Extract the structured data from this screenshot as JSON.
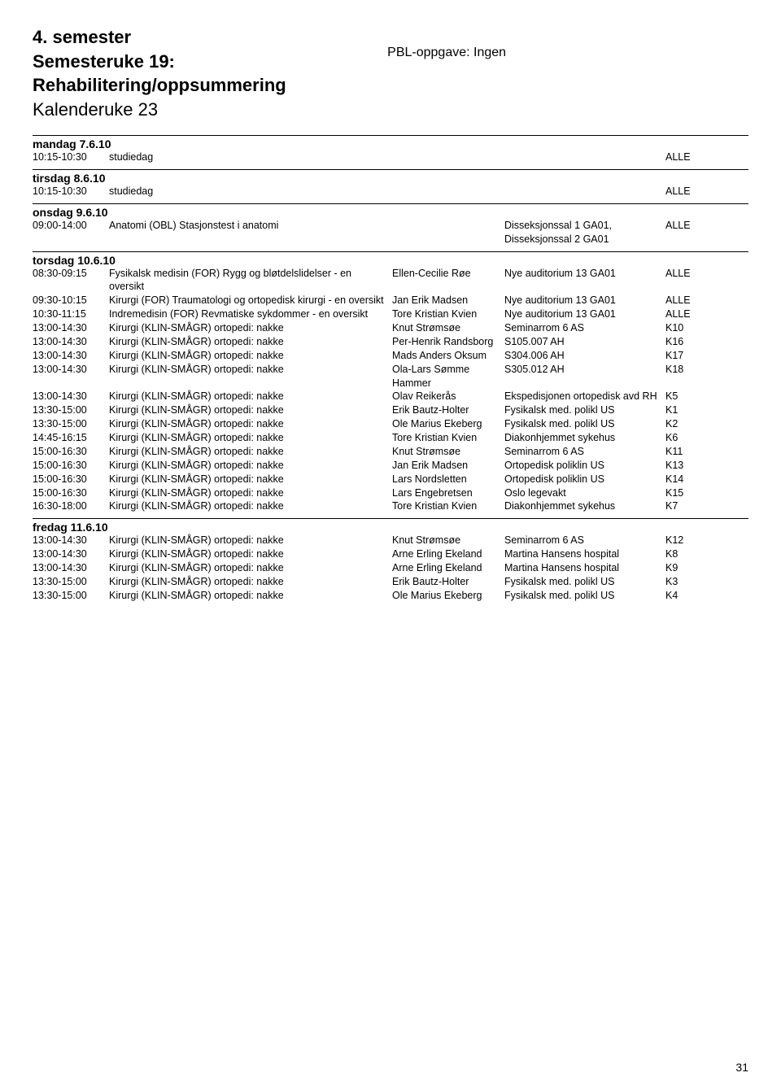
{
  "header": {
    "line1": "4. semester",
    "line2": "Semesteruke 19:",
    "line3": "Rehabilitering/oppsummering",
    "line4": "Kalenderuke 23",
    "pbl": "PBL-oppgave: Ingen"
  },
  "days": [
    {
      "title": "mandag 7.6.10",
      "rows": [
        {
          "time": "10:15-10:30",
          "label": "studiedag",
          "person": "",
          "loc": "",
          "code": "ALLE"
        }
      ]
    },
    {
      "title": "tirsdag 8.6.10",
      "rows": [
        {
          "time": "10:15-10:30",
          "label": "studiedag",
          "person": "",
          "loc": "",
          "code": "ALLE"
        }
      ]
    },
    {
      "title": "onsdag 9.6.10",
      "rows": [
        {
          "time": "09:00-14:00",
          "label": "Anatomi (OBL) Stasjonstest i anatomi",
          "person": "",
          "loc": "Disseksjonssal 1 GA01, Disseksjonssal 2 GA01",
          "code": "ALLE"
        }
      ]
    },
    {
      "title": "torsdag 10.6.10",
      "rows": [
        {
          "time": "08:30-09:15",
          "label": "Fysikalsk medisin (FOR) Rygg og bløtdelslidelser - en oversikt",
          "person": "Ellen-Cecilie Røe",
          "loc": "Nye auditorium 13 GA01",
          "code": "ALLE"
        },
        {
          "time": "09:30-10:15",
          "label": "Kirurgi (FOR) Traumatologi og ortopedisk kirurgi - en oversikt",
          "person": "Jan Erik Madsen",
          "loc": "Nye auditorium 13 GA01",
          "code": "ALLE"
        },
        {
          "time": "10:30-11:15",
          "label": "Indremedisin (FOR) Revmatiske sykdommer - en oversikt",
          "person": "Tore Kristian Kvien",
          "loc": "Nye auditorium 13 GA01",
          "code": "ALLE"
        },
        {
          "time": "13:00-14:30",
          "label": "Kirurgi (KLIN-SMÅGR) ortopedi: nakke",
          "person": "Knut Strømsøe",
          "loc": "Seminarrom 6 AS",
          "code": "K10"
        },
        {
          "time": "13:00-14:30",
          "label": "Kirurgi (KLIN-SMÅGR) ortopedi: nakke",
          "person": "Per-Henrik Randsborg",
          "loc": "S105.007 AH",
          "code": "K16"
        },
        {
          "time": "13:00-14:30",
          "label": "Kirurgi (KLIN-SMÅGR) ortopedi: nakke",
          "person": "Mads Anders Oksum",
          "loc": "S304.006 AH",
          "code": "K17"
        },
        {
          "time": "13:00-14:30",
          "label": "Kirurgi (KLIN-SMÅGR) ortopedi: nakke",
          "person": "Ola-Lars Sømme Hammer",
          "loc": "S305.012 AH",
          "code": "K18"
        },
        {
          "time": "13:00-14:30",
          "label": "Kirurgi (KLIN-SMÅGR) ortopedi: nakke",
          "person": "Olav Reikerås",
          "loc": "Ekspedisjonen ortopedisk avd RH",
          "code": "K5"
        },
        {
          "time": "13:30-15:00",
          "label": "Kirurgi (KLIN-SMÅGR) ortopedi: nakke",
          "person": "Erik Bautz-Holter",
          "loc": "Fysikalsk med. polikl US",
          "code": "K1"
        },
        {
          "time": "13:30-15:00",
          "label": "Kirurgi (KLIN-SMÅGR) ortopedi: nakke",
          "person": "Ole Marius Ekeberg",
          "loc": "Fysikalsk med. polikl US",
          "code": "K2"
        },
        {
          "time": "14:45-16:15",
          "label": "Kirurgi (KLIN-SMÅGR) ortopedi: nakke",
          "person": "Tore Kristian Kvien",
          "loc": "Diakonhjemmet sykehus",
          "code": "K6"
        },
        {
          "time": "15:00-16:30",
          "label": "Kirurgi (KLIN-SMÅGR) ortopedi: nakke",
          "person": "Knut Strømsøe",
          "loc": "Seminarrom 6 AS",
          "code": "K11"
        },
        {
          "time": "15:00-16:30",
          "label": "Kirurgi (KLIN-SMÅGR) ortopedi: nakke",
          "person": "Jan Erik Madsen",
          "loc": "Ortopedisk poliklin US",
          "code": "K13"
        },
        {
          "time": "15:00-16:30",
          "label": "Kirurgi (KLIN-SMÅGR) ortopedi: nakke",
          "person": "Lars Nordsletten",
          "loc": "Ortopedisk poliklin US",
          "code": "K14"
        },
        {
          "time": "15:00-16:30",
          "label": "Kirurgi (KLIN-SMÅGR) ortopedi: nakke",
          "person": "Lars Engebretsen",
          "loc": "Oslo legevakt",
          "code": "K15"
        },
        {
          "time": "16:30-18:00",
          "label": "Kirurgi (KLIN-SMÅGR) ortopedi: nakke",
          "person": "Tore Kristian Kvien",
          "loc": "Diakonhjemmet sykehus",
          "code": "K7"
        }
      ]
    },
    {
      "title": "fredag 11.6.10",
      "rows": [
        {
          "time": "13:00-14:30",
          "label": "Kirurgi (KLIN-SMÅGR) ortopedi: nakke",
          "person": "Knut Strømsøe",
          "loc": "Seminarrom 6 AS",
          "code": "K12"
        },
        {
          "time": "13:00-14:30",
          "label": "Kirurgi (KLIN-SMÅGR) ortopedi: nakke",
          "person": "Arne Erling Ekeland",
          "loc": "Martina Hansens hospital",
          "code": "K8"
        },
        {
          "time": "13:00-14:30",
          "label": "Kirurgi (KLIN-SMÅGR) ortopedi: nakke",
          "person": "Arne Erling Ekeland",
          "loc": "Martina Hansens hospital",
          "code": "K9"
        },
        {
          "time": "13:30-15:00",
          "label": "Kirurgi (KLIN-SMÅGR) ortopedi: nakke",
          "person": "Erik Bautz-Holter",
          "loc": "Fysikalsk med. polikl US",
          "code": "K3"
        },
        {
          "time": "13:30-15:00",
          "label": "Kirurgi (KLIN-SMÅGR) ortopedi: nakke",
          "person": "Ole Marius Ekeberg",
          "loc": "Fysikalsk med. polikl US",
          "code": "K4"
        }
      ]
    }
  ],
  "page": "31"
}
